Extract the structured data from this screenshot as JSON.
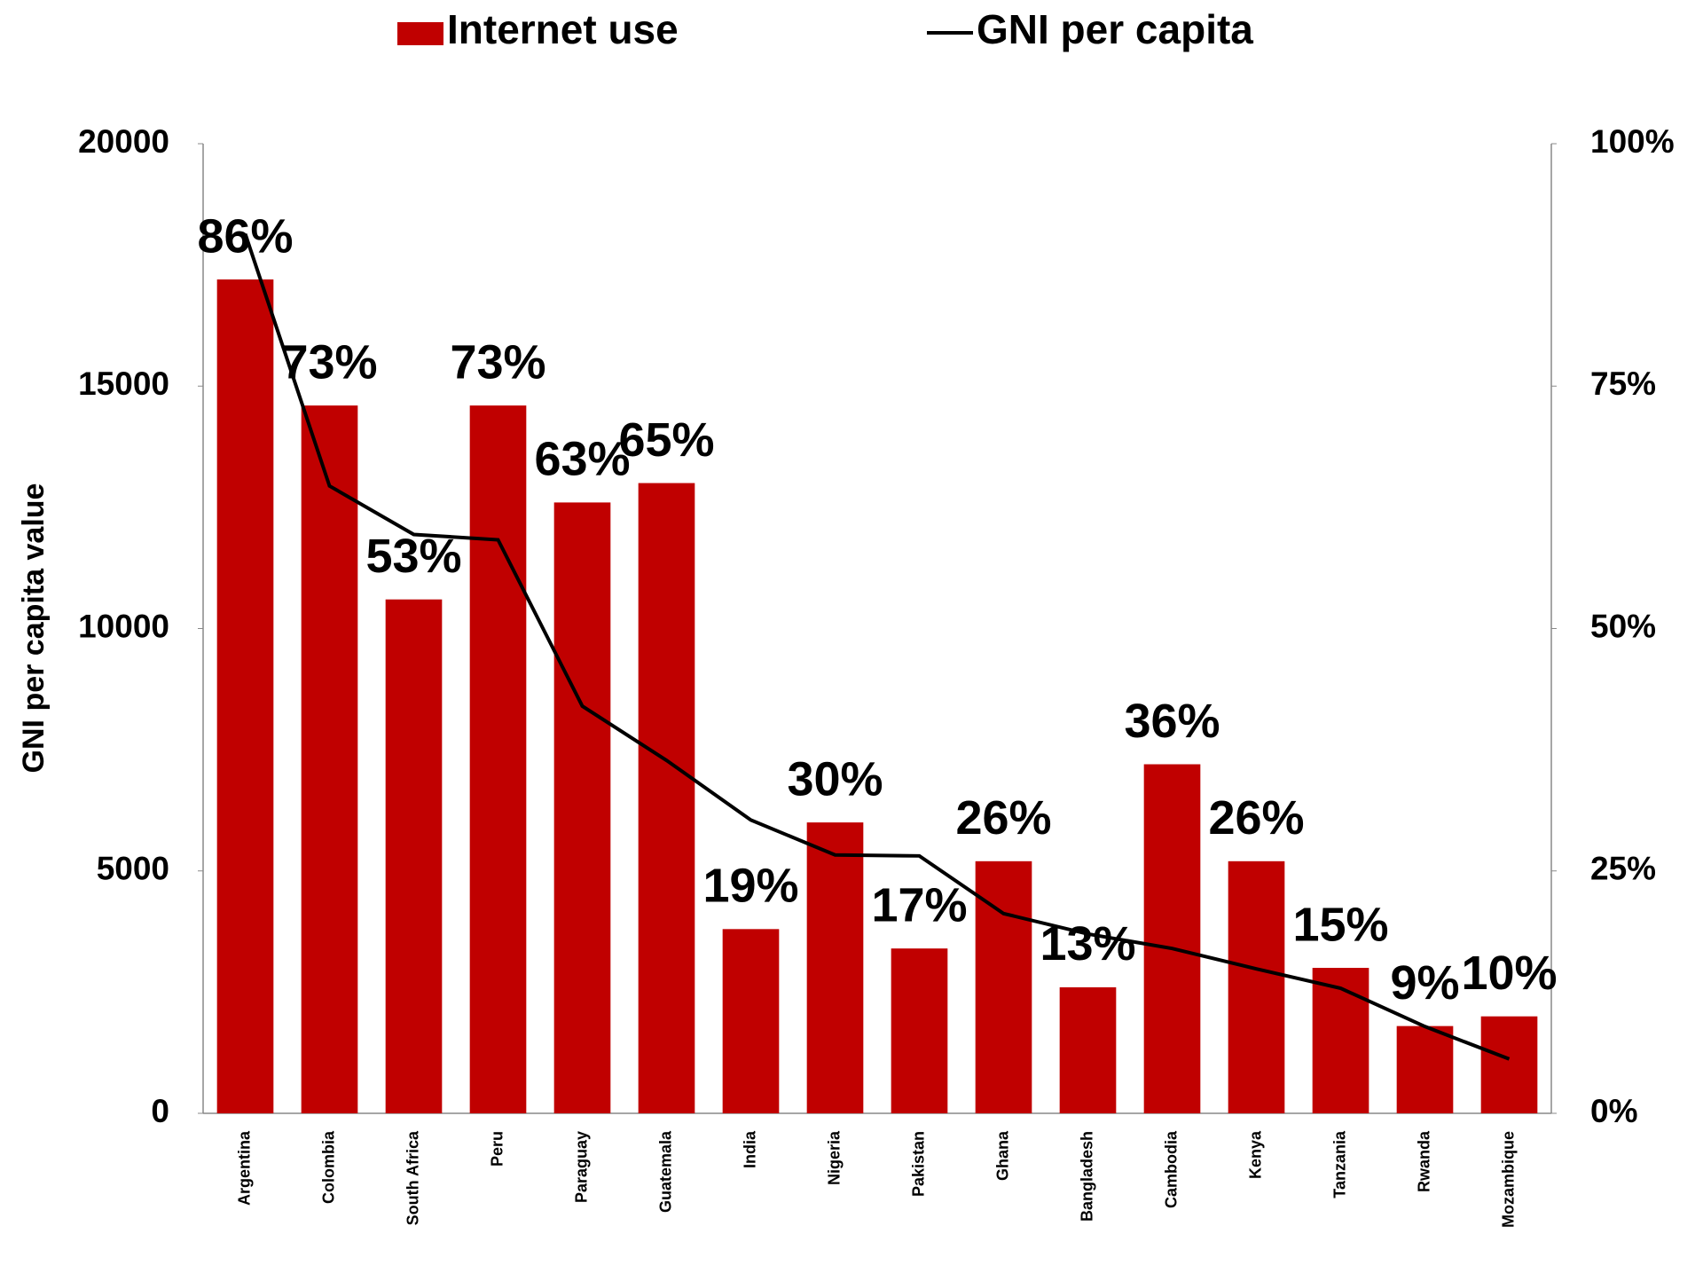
{
  "chart_data": {
    "type": "bar_line",
    "y_label": "GNI per capita value",
    "categories": [
      "Argentina",
      "Colombia",
      "South Africa",
      "Peru",
      "Paraguay",
      "Guatemala",
      "India",
      "Nigeria",
      "Pakistan",
      "Ghana",
      "Bangladesh",
      "Cambodia",
      "Kenya",
      "Tanzania",
      "Rwanda",
      "Mozambique"
    ],
    "series": [
      {
        "name": "Internet use",
        "type": "bar",
        "axis": "y2",
        "color": "#c00000",
        "values": [
          86,
          73,
          53,
          73,
          63,
          65,
          19,
          30,
          17,
          26,
          13,
          36,
          26,
          15,
          9,
          10
        ],
        "value_labels": [
          "86%",
          "73%",
          "53%",
          "73%",
          "63%",
          "65%",
          "19%",
          "30%",
          "17%",
          "26%",
          "13%",
          "36%",
          "26%",
          "15%",
          "9%",
          "10%"
        ]
      },
      {
        "name": "GNI per capita",
        "type": "line",
        "color": "#000000",
        "values": [
          18140,
          12940,
          11940,
          11830,
          8400,
          7280,
          6050,
          5330,
          5310,
          4120,
          3700,
          3400,
          2980,
          2580,
          1790,
          1120
        ]
      }
    ],
    "ylim": [
      0,
      20000
    ],
    "yticks": [
      0,
      5000,
      10000,
      15000,
      20000
    ],
    "y2lim": [
      0,
      100
    ],
    "y2ticks": [
      {
        "value": 0,
        "label": "0%"
      },
      {
        "value": 25,
        "label": "25%"
      },
      {
        "value": 50,
        "label": "50%"
      },
      {
        "value": 75,
        "label": "75%"
      },
      {
        "value": 100,
        "label": "100%"
      }
    ],
    "legend": "top"
  }
}
